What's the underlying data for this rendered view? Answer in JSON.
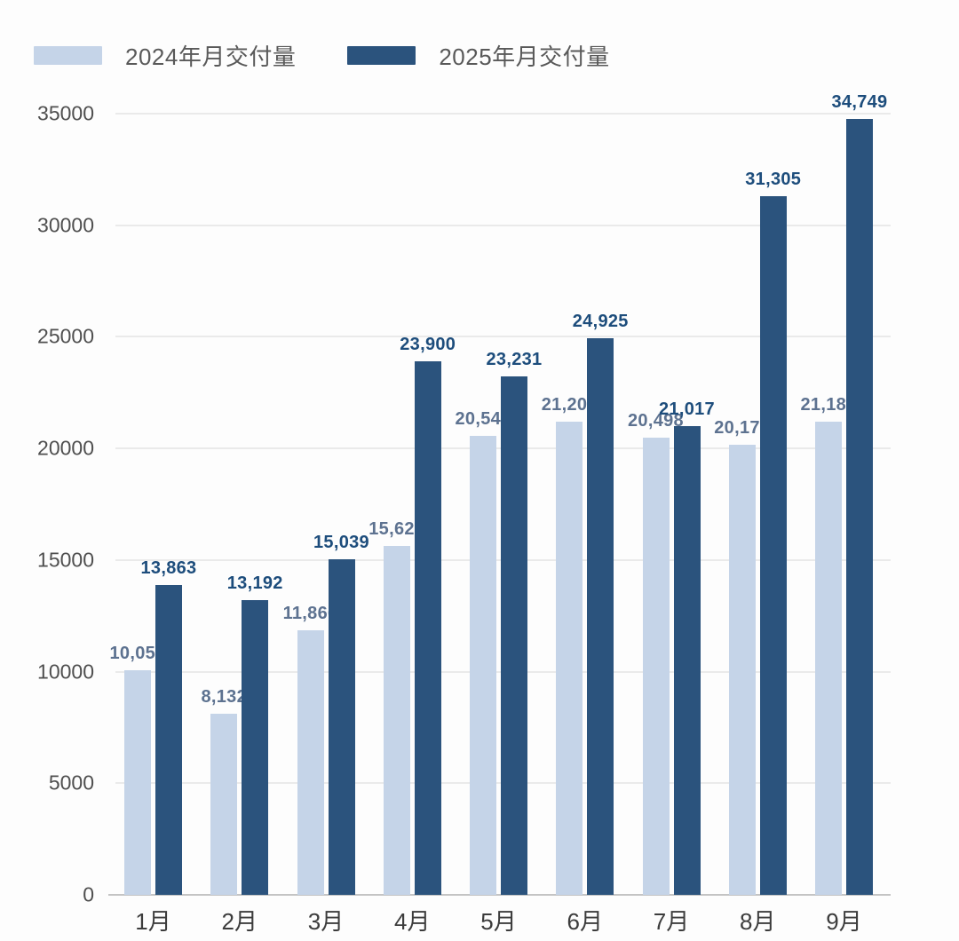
{
  "legend": {
    "items": [
      {
        "label": "2024年月交付量",
        "color": "#c5d4e8"
      },
      {
        "label": "2025年月交付量",
        "color": "#2b537d"
      }
    ]
  },
  "chart_data": {
    "type": "bar",
    "title": "",
    "categories": [
      "1月",
      "2月",
      "3月",
      "4月",
      "5月",
      "6月",
      "7月",
      "8月",
      "9月"
    ],
    "series": [
      {
        "name": "2024年月交付量",
        "color": "#c5d4e8",
        "label_color": "#5d7290",
        "values": [
          10055,
          8132,
          11866,
          15620,
          20544,
          21209,
          20498,
          20176,
          21181
        ],
        "labels": [
          "10,055",
          "8,132",
          "11,866",
          "15,620",
          "20,544",
          "21,209",
          "20,498",
          "20,176",
          "21,181"
        ]
      },
      {
        "name": "2025年月交付量",
        "color": "#2b537d",
        "label_color": "#1d4d7c",
        "values": [
          13863,
          13192,
          15039,
          23900,
          23231,
          24925,
          21017,
          31305,
          34749
        ],
        "labels": [
          "13,863",
          "13,192",
          "15,039",
          "23,900",
          "23,231",
          "24,925",
          "21,017",
          "31,305",
          "34,749"
        ]
      }
    ],
    "y_ticks": [
      0,
      5000,
      10000,
      15000,
      20000,
      25000,
      30000,
      35000
    ],
    "y_tick_labels": [
      "0",
      "5000",
      "10000",
      "15000",
      "20000",
      "25000",
      "30000",
      "35000"
    ],
    "ylim": [
      0,
      35000
    ],
    "xlabel": "",
    "ylabel": "",
    "grid": true,
    "legend_position": "top-left"
  }
}
